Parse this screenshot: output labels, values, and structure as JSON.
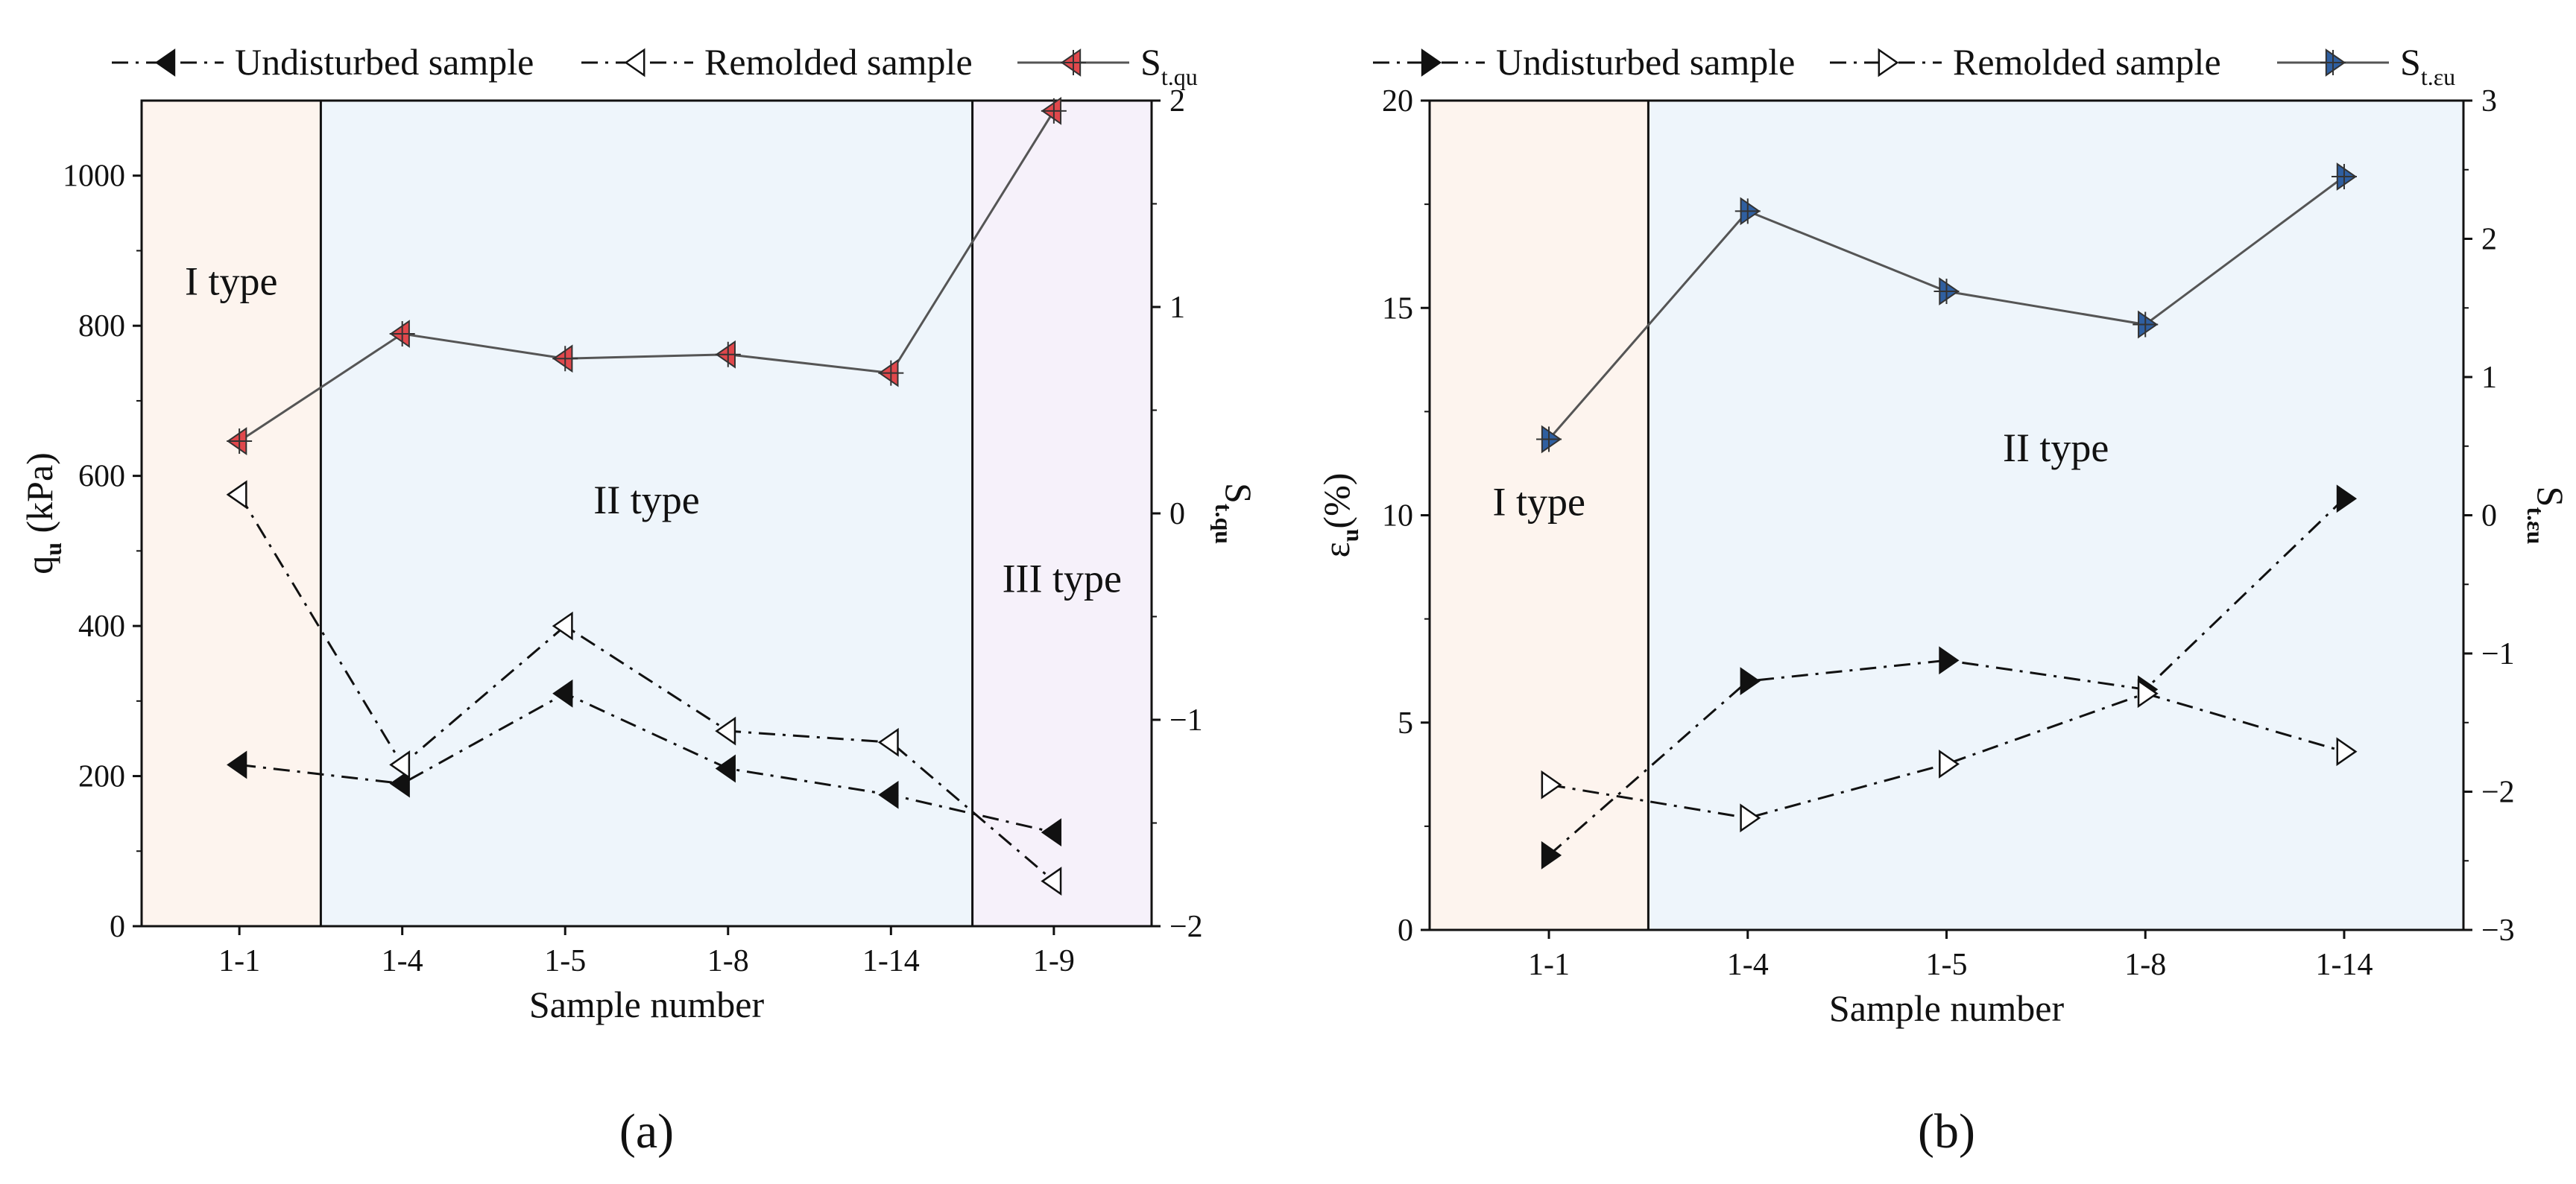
{
  "charts": [
    {
      "panel_label": "(a)",
      "legend": [
        {
          "label": "Undisturbed sample",
          "kind": "undisturbed"
        },
        {
          "label": "Remolded sample",
          "kind": "remolded"
        },
        {
          "label": "S",
          "sub": "t.qu",
          "kind": "ratio"
        }
      ],
      "regions": [
        {
          "label": "I type",
          "color": "#fdf4ee"
        },
        {
          "label": "II type",
          "color": "#eef5fb"
        },
        {
          "label": "III type",
          "color": "#f6f1fa"
        }
      ],
      "ratio_color": "#e0484c"
    },
    {
      "panel_label": "(b)",
      "legend": [
        {
          "label": "Undisturbed sample",
          "kind": "undisturbed"
        },
        {
          "label": "Remolded sample",
          "kind": "remolded"
        },
        {
          "label": "S",
          "sub": "t.εu",
          "kind": "ratio"
        }
      ],
      "regions": [
        {
          "label": "I type",
          "color": "#fdf4ee"
        },
        {
          "label": "II type",
          "color": "#eef5fb"
        }
      ],
      "ratio_color": "#2f5fa0"
    }
  ],
  "chart_data": [
    {
      "type": "line",
      "xlabel": "Sample number",
      "ylabel": "q",
      "ylabel_sub": "u",
      "ylabel_unit": " (kPa)",
      "y2label": "S",
      "y2label_sub": "t.qu",
      "categories": [
        "1-1",
        "1-4",
        "1-5",
        "1-8",
        "1-14",
        "1-9"
      ],
      "ylim": [
        0,
        1100
      ],
      "yticks": [
        0,
        200,
        400,
        600,
        800,
        1000
      ],
      "y2lim": [
        -2,
        2
      ],
      "y2ticks": [
        -2,
        -1,
        0,
        1,
        2
      ],
      "series": [
        {
          "name": "Undisturbed sample",
          "axis": "left",
          "values": [
            215,
            190,
            310,
            210,
            175,
            125
          ]
        },
        {
          "name": "Remolded sample",
          "axis": "left",
          "values": [
            575,
            215,
            400,
            260,
            245,
            60
          ]
        },
        {
          "name": "S t.qu",
          "axis": "right",
          "values": [
            0.35,
            0.87,
            0.75,
            0.77,
            0.68,
            1.95
          ]
        }
      ],
      "regions": [
        {
          "label": "I type",
          "from": 0,
          "to": 1
        },
        {
          "label": "II type",
          "from": 1,
          "to": 5
        },
        {
          "label": "III type",
          "from": 5,
          "to": 6
        }
      ]
    },
    {
      "type": "line",
      "xlabel": "Sample number",
      "ylabel": "ε",
      "ylabel_sub": "u",
      "ylabel_unit": "(%)",
      "y2label": "S",
      "y2label_sub": "t.εu",
      "categories": [
        "1-1",
        "1-4",
        "1-5",
        "1-8",
        "1-14"
      ],
      "ylim": [
        0,
        20
      ],
      "yticks": [
        0,
        5,
        10,
        15,
        20
      ],
      "y2lim": [
        -3,
        3
      ],
      "y2ticks": [
        -3,
        -2,
        -1,
        0,
        1,
        2,
        3
      ],
      "series": [
        {
          "name": "Undisturbed sample",
          "axis": "left",
          "values": [
            1.8,
            6.0,
            6.5,
            5.8,
            10.4
          ]
        },
        {
          "name": "Remolded sample",
          "axis": "left",
          "values": [
            3.5,
            2.7,
            4.0,
            5.7,
            4.3
          ]
        },
        {
          "name": "S t.εu",
          "axis": "right",
          "values": [
            0.55,
            2.2,
            1.62,
            1.38,
            2.45
          ]
        }
      ],
      "regions": [
        {
          "label": "I type",
          "from": 0,
          "to": 1
        },
        {
          "label": "II type",
          "from": 1,
          "to": 5
        }
      ]
    }
  ]
}
